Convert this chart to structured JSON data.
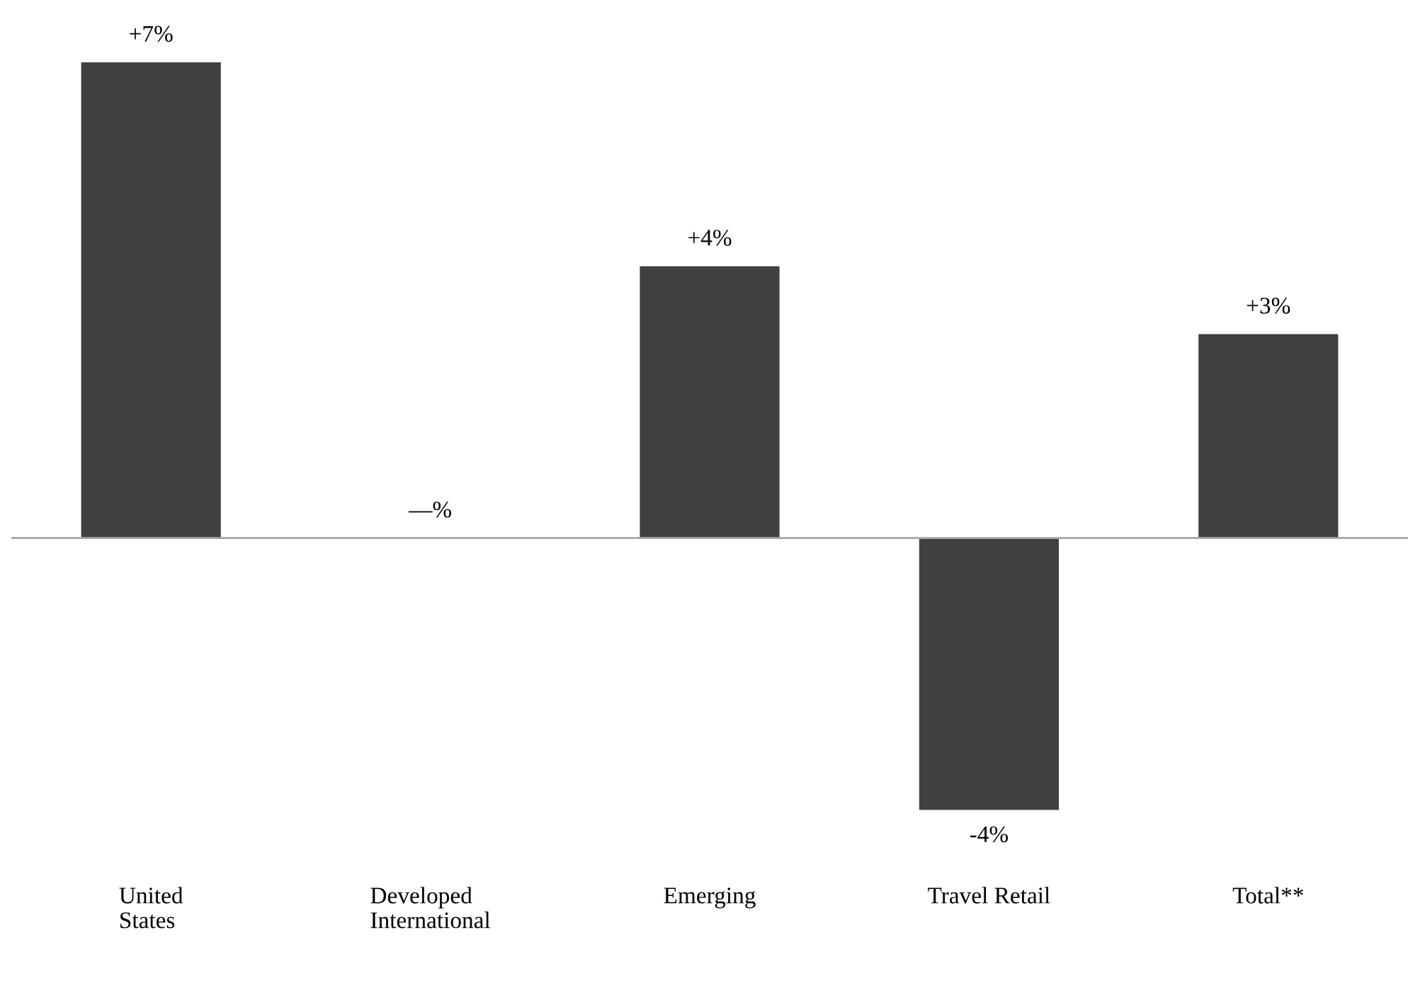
{
  "chart_data": {
    "type": "bar",
    "categories": [
      "United\nStates",
      "Developed\nInternational",
      "Emerging",
      "Travel Retail",
      "Total**"
    ],
    "values": [
      7,
      0,
      4,
      -4,
      3
    ],
    "value_labels": [
      "+7%",
      "—%",
      "+4%",
      "-4%",
      "+3%"
    ],
    "color": "#404040",
    "tick_labels": "x",
    "grid": false,
    "legend": false,
    "ref_lines": [
      {
        "axis": "y",
        "value": 0,
        "color": "#a6a6a6"
      }
    ]
  }
}
